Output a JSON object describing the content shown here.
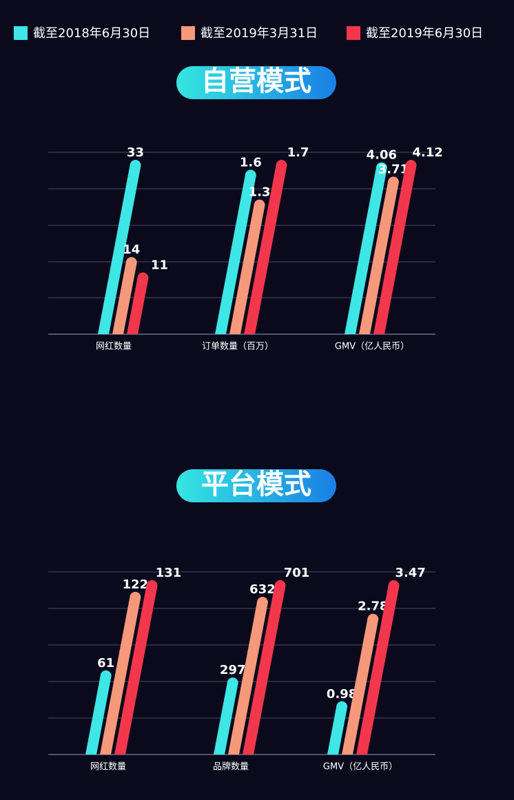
{
  "chart_data": [
    {
      "type": "bar",
      "title": "自营模式",
      "categories": [
        "网红数量",
        "订单数量（百万）",
        "GMV（亿人民币）"
      ],
      "series": [
        {
          "name": "截至2018年6月30日",
          "color": "#3ee6e6",
          "values": [
            33,
            1.6,
            4.06
          ]
        },
        {
          "name": "截至2019年3月31日",
          "color": "#f5997a",
          "values": [
            14,
            1.3,
            3.71
          ]
        },
        {
          "name": "截至2019年6月30日",
          "color": "#f2374c",
          "values": [
            11,
            1.7,
            4.12
          ]
        }
      ]
    },
    {
      "type": "bar",
      "title": "平台模式",
      "categories": [
        "网红数量",
        "品牌数量",
        "GMV（亿人民币）"
      ],
      "series": [
        {
          "color": "#3ee6e6",
          "values": [
            61,
            297,
            0.98
          ]
        },
        {
          "color": "#f5997a",
          "values": [
            122,
            632,
            2.78
          ]
        },
        {
          "color": "#f2374c",
          "values": [
            131,
            701,
            3.47
          ]
        }
      ]
    }
  ]
}
